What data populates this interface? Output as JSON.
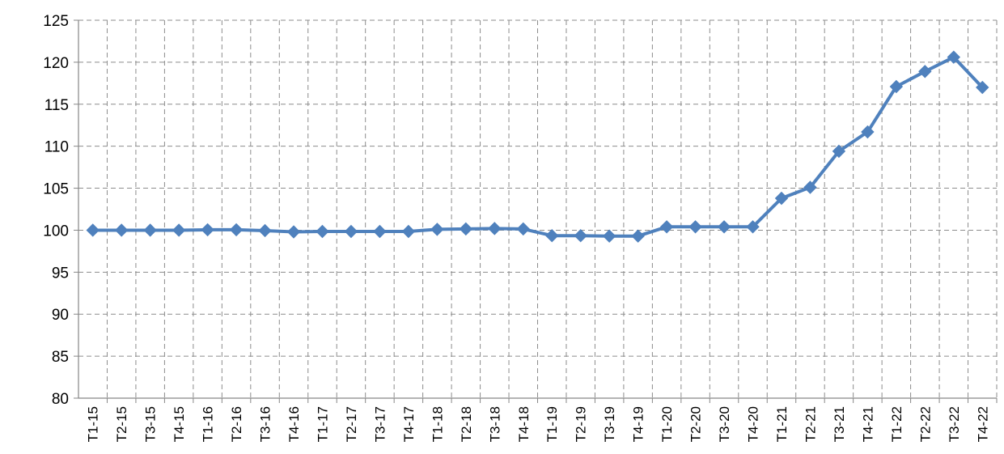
{
  "chart_data": {
    "type": "line",
    "title": "",
    "xlabel": "",
    "ylabel": "",
    "ylim": [
      80,
      125
    ],
    "yticks": [
      80,
      85,
      90,
      95,
      100,
      105,
      110,
      115,
      120,
      125
    ],
    "grid": true,
    "legend": "none",
    "categories": [
      "T1-15",
      "T2-15",
      "T3-15",
      "T4-15",
      "T1-16",
      "T2-16",
      "T3-16",
      "T4-16",
      "T1-17",
      "T2-17",
      "T3-17",
      "T4-17",
      "T1-18",
      "T2-18",
      "T3-18",
      "T4-18",
      "T1-19",
      "T2-19",
      "T3-19",
      "T4-19",
      "T1-20",
      "T2-20",
      "T3-20",
      "T4-20",
      "T1-21",
      "T2-21",
      "T3-21",
      "T4-21",
      "T1-22",
      "T2-22",
      "T3-22",
      "T4-22"
    ],
    "series": [
      {
        "color": "#4f81bd",
        "marker": "diamond",
        "values": [
          100.0,
          100.0,
          100.0,
          100.0,
          100.05,
          100.05,
          99.95,
          99.8,
          99.85,
          99.85,
          99.85,
          99.85,
          100.1,
          100.15,
          100.2,
          100.15,
          99.35,
          99.35,
          99.3,
          99.3,
          100.4,
          100.4,
          100.4,
          100.4,
          103.8,
          105.1,
          109.4,
          111.7,
          117.1,
          118.9,
          120.6,
          117.0
        ]
      }
    ]
  }
}
